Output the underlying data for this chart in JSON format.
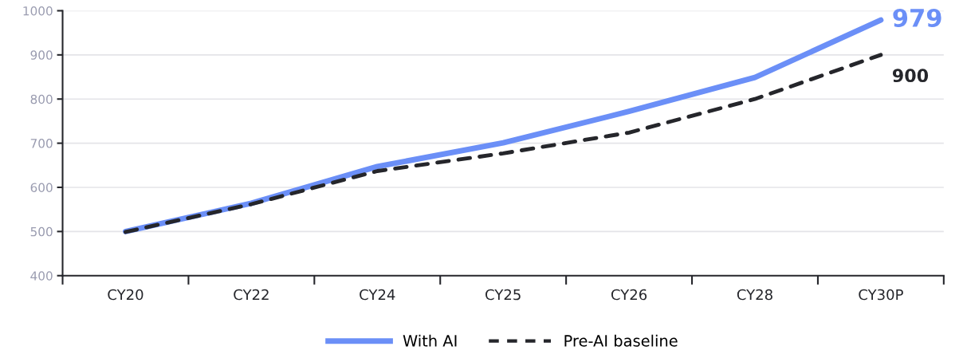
{
  "chart_data": {
    "type": "line",
    "categories": [
      "CY20",
      "CY22",
      "CY24",
      "CY25",
      "CY26",
      "CY28",
      "CY30P"
    ],
    "series": [
      {
        "name": "With AI",
        "color": "#6b8ff7",
        "line_style": "solid",
        "values": [
          500,
          564,
          647,
          701,
          772,
          849,
          979
        ],
        "value_labels": [
          null,
          null,
          null,
          null,
          null,
          null,
          "979"
        ]
      },
      {
        "name": "Pre-AI baseline",
        "color": "#25262b",
        "line_style": "dashed",
        "values": [
          499,
          562,
          637,
          677,
          724,
          800,
          900
        ],
        "value_labels": [
          null,
          null,
          null,
          null,
          null,
          null,
          "900"
        ]
      }
    ],
    "ylim": [
      400,
      1000
    ],
    "yticks": [
      400,
      500,
      600,
      700,
      800,
      900,
      1000
    ],
    "grid": "y",
    "legend": "bottom",
    "marker": "none"
  }
}
